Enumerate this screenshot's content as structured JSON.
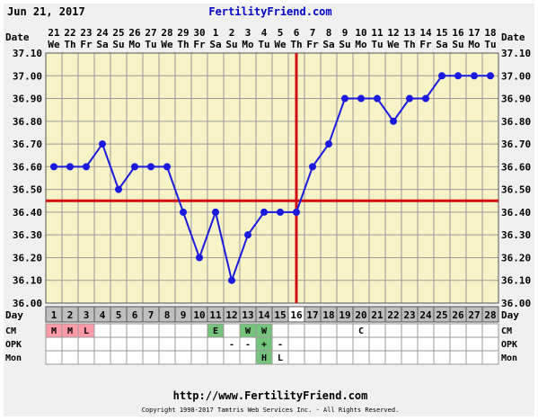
{
  "header": {
    "date": "Jun 21, 2017",
    "site": "FertilityFriend.com"
  },
  "footer": {
    "url": "http://www.FertilityFriend.com",
    "copyright": "Copyright 1998-2017 Tamtris Web Services Inc. - All Rights Reserved."
  },
  "colors": {
    "background": "#f0f0f0",
    "plot_background": "#f7f3c6",
    "grid": "#9a9a9a",
    "series": "#1a1adf",
    "reference_lines": "#d20f0f",
    "day_row_background": "#bfbfbf",
    "day_row_highlight": "#ffffff",
    "menstrual_cell": "#ff9aa6",
    "fertile_cell": "#74c47c",
    "header_text": "#0000c8"
  },
  "chart_data": {
    "type": "line",
    "title": "",
    "xlabel": "",
    "ylabel": "",
    "ylim": [
      36.0,
      37.1
    ],
    "y_ticks": [
      "37.10",
      "37.00",
      "36.90",
      "36.80",
      "36.70",
      "36.60",
      "36.50",
      "36.40",
      "36.30",
      "36.20",
      "36.10",
      "36.00"
    ],
    "grid": true,
    "date_row_label": "Date",
    "dates": [
      "21",
      "22",
      "23",
      "24",
      "25",
      "26",
      "27",
      "28",
      "29",
      "30",
      "1",
      "2",
      "3",
      "4",
      "5",
      "6",
      "7",
      "8",
      "9",
      "10",
      "11",
      "12",
      "13",
      "14",
      "15",
      "16",
      "17",
      "18"
    ],
    "weekdays": [
      "We",
      "Th",
      "Fr",
      "Sa",
      "Su",
      "Mo",
      "Tu",
      "We",
      "Th",
      "Fr",
      "Sa",
      "Su",
      "Mo",
      "Tu",
      "We",
      "Th",
      "Fr",
      "Sa",
      "Su",
      "Mo",
      "Tu",
      "We",
      "Th",
      "Fr",
      "Sa",
      "Su",
      "Mo",
      "Tu"
    ],
    "day_row_label": "Day",
    "cycle_days": [
      1,
      2,
      3,
      4,
      5,
      6,
      7,
      8,
      9,
      10,
      11,
      12,
      13,
      14,
      15,
      16,
      17,
      18,
      19,
      20,
      21,
      22,
      23,
      24,
      25,
      26,
      27,
      28
    ],
    "values": [
      36.6,
      36.6,
      36.6,
      36.7,
      36.5,
      36.6,
      36.6,
      36.6,
      36.4,
      36.2,
      36.4,
      36.1,
      36.3,
      36.4,
      36.4,
      36.4,
      36.6,
      36.7,
      36.9,
      36.9,
      36.9,
      36.8,
      36.9,
      36.9,
      37.0,
      37.0,
      37.0,
      37.0
    ],
    "coverline": 36.45,
    "ovulation_day": 16,
    "rows": [
      {
        "label": "CM",
        "cells": [
          "M",
          "M",
          "L",
          "",
          "",
          "",
          "",
          "",
          "",
          "",
          "E",
          "",
          "W",
          "W",
          "",
          "",
          "",
          "",
          "",
          "C",
          "",
          "",
          "",
          "",
          "",
          "",
          "",
          ""
        ]
      },
      {
        "label": "OPK",
        "cells": [
          "",
          "",
          "",
          "",
          "",
          "",
          "",
          "",
          "",
          "",
          "",
          "-",
          "-",
          "+",
          "-",
          "",
          "",
          "",
          "",
          "",
          "",
          "",
          "",
          "",
          "",
          "",
          "",
          ""
        ]
      },
      {
        "label": "Mon",
        "cells": [
          "",
          "",
          "",
          "",
          "",
          "",
          "",
          "",
          "",
          "",
          "",
          "",
          "",
          "H",
          "L",
          "",
          "",
          "",
          "",
          "",
          "",
          "",
          "",
          "",
          "",
          "",
          "",
          ""
        ]
      }
    ]
  }
}
